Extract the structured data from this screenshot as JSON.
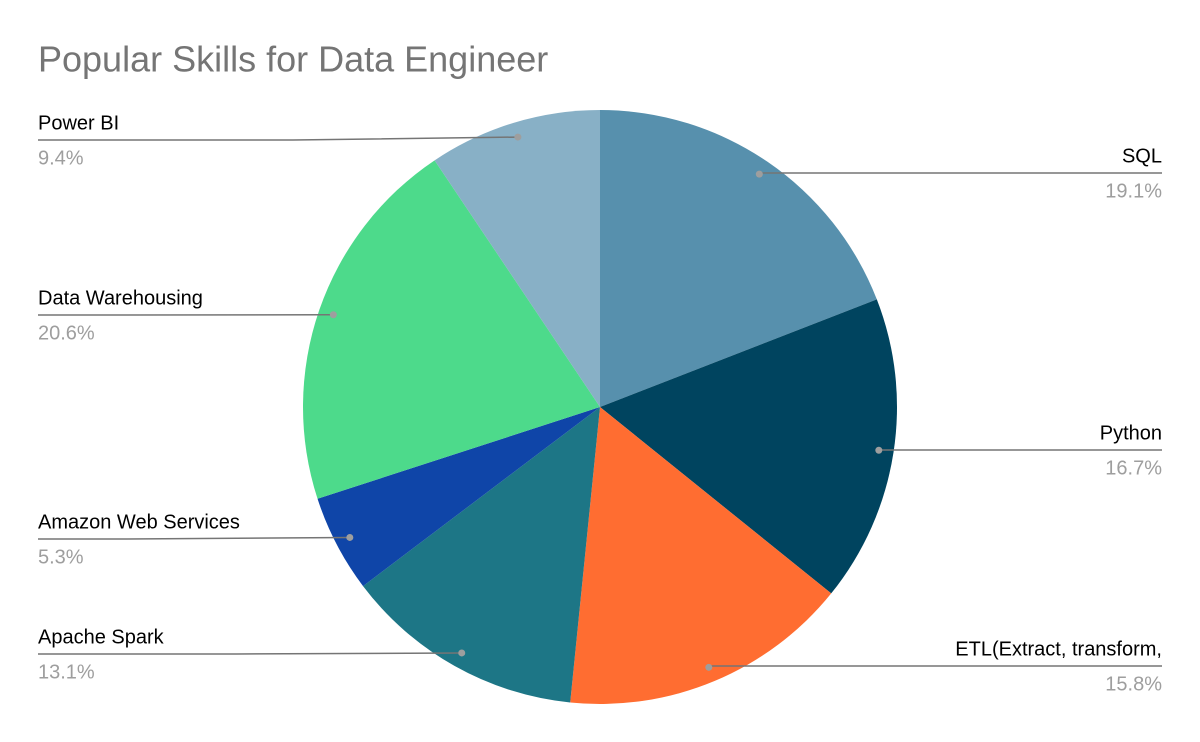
{
  "chart_data": {
    "type": "pie",
    "title": "Popular Skills for Data Engineer",
    "categories": [
      "SQL",
      "Python",
      "ETL(Extract, transform,",
      "Apache Spark",
      "Amazon Web Services",
      "Data Warehousing",
      "Power BI"
    ],
    "values": [
      19.1,
      16.7,
      15.8,
      13.1,
      5.3,
      20.6,
      9.4
    ],
    "value_labels": [
      "19.1%",
      "16.7%",
      "15.8%",
      "13.1%",
      "5.3%",
      "20.6%",
      "9.4%"
    ],
    "colors": [
      "#5790ad",
      "#00445f",
      "#ff6d31",
      "#1d7686",
      "#0f45a8",
      "#4dda8b",
      "#88b0c6"
    ]
  }
}
